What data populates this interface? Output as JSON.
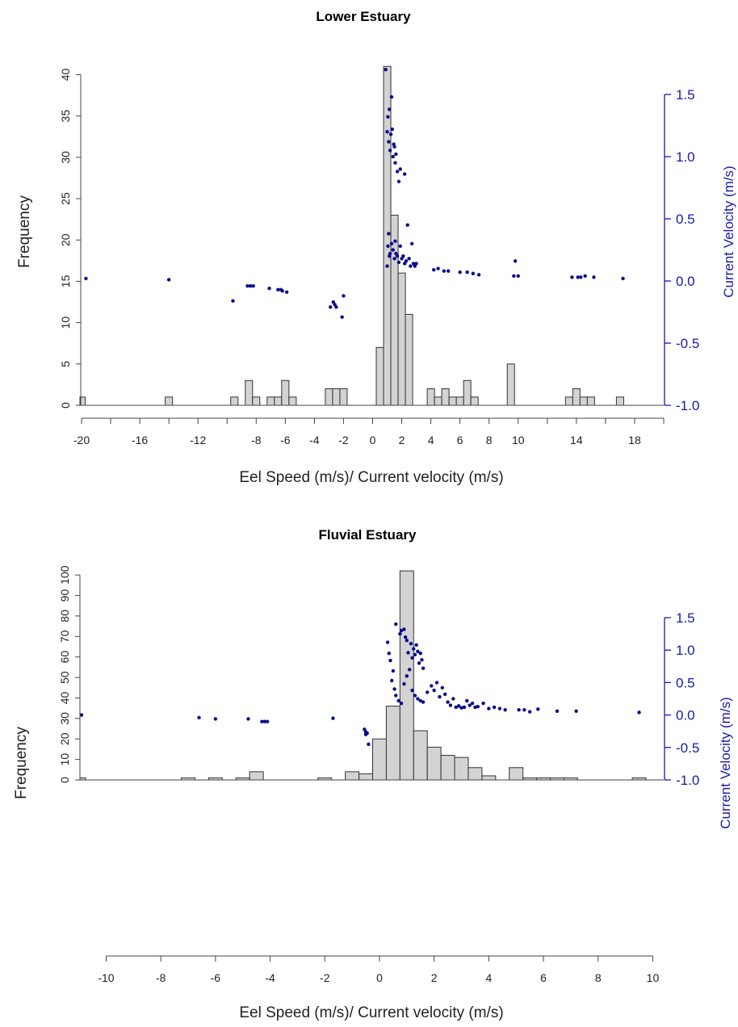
{
  "chart_data": [
    {
      "type": "bar",
      "title": "Lower Estuary",
      "xlabel": "Eel Speed (m/s)/ Current velocity (m/s)",
      "ylabel": "Frequency",
      "y2label": "Current Velocity (m/s)",
      "xlim": [
        -20,
        20
      ],
      "ylim": [
        0,
        42
      ],
      "y2lim": [
        -1.0,
        1.5
      ],
      "xticks": [
        -20,
        -16,
        -12,
        -8,
        -6,
        -4,
        -2,
        0,
        2,
        4,
        6,
        8,
        10,
        14,
        18
      ],
      "yticks": [
        0,
        5,
        10,
        15,
        20,
        25,
        30,
        35,
        40
      ],
      "y2ticks": [
        -1.0,
        -0.5,
        0.0,
        0.5,
        1.0,
        1.5
      ],
      "bar_width": 0.5,
      "bars": [
        {
          "x": -20,
          "count": 1
        },
        {
          "x": -14,
          "count": 1
        },
        {
          "x": -9.5,
          "count": 1
        },
        {
          "x": -8.5,
          "count": 3
        },
        {
          "x": -8,
          "count": 1
        },
        {
          "x": -7,
          "count": 1
        },
        {
          "x": -6.5,
          "count": 1
        },
        {
          "x": -6,
          "count": 3
        },
        {
          "x": -5.5,
          "count": 1
        },
        {
          "x": -3,
          "count": 2
        },
        {
          "x": -2.5,
          "count": 2
        },
        {
          "x": -2,
          "count": 2
        },
        {
          "x": 0.5,
          "count": 7
        },
        {
          "x": 1,
          "count": 41
        },
        {
          "x": 1.5,
          "count": 23
        },
        {
          "x": 2,
          "count": 16
        },
        {
          "x": 2.5,
          "count": 11
        },
        {
          "x": 4,
          "count": 2
        },
        {
          "x": 4.5,
          "count": 1
        },
        {
          "x": 5,
          "count": 2
        },
        {
          "x": 5.5,
          "count": 1
        },
        {
          "x": 6,
          "count": 1
        },
        {
          "x": 6.5,
          "count": 3
        },
        {
          "x": 7,
          "count": 1
        },
        {
          "x": 9.5,
          "count": 5
        },
        {
          "x": 13.5,
          "count": 1
        },
        {
          "x": 14,
          "count": 2
        },
        {
          "x": 14.5,
          "count": 1
        },
        {
          "x": 15,
          "count": 1
        },
        {
          "x": 17,
          "count": 1
        }
      ],
      "points": [
        [
          -19.7,
          0.02
        ],
        [
          -14,
          0.01
        ],
        [
          -9.6,
          -0.16
        ],
        [
          -8.6,
          -0.04
        ],
        [
          -8.4,
          -0.04
        ],
        [
          -8.2,
          -0.04
        ],
        [
          -7.1,
          -0.06
        ],
        [
          -6.5,
          -0.07
        ],
        [
          -6.3,
          -0.07
        ],
        [
          -6.2,
          -0.08
        ],
        [
          -5.9,
          -0.09
        ],
        [
          -2.9,
          -0.21
        ],
        [
          -2.7,
          -0.17
        ],
        [
          -2.6,
          -0.19
        ],
        [
          -2.5,
          -0.21
        ],
        [
          -2.1,
          -0.29
        ],
        [
          -2.0,
          -0.12
        ],
        [
          0.9,
          1.7
        ],
        [
          1.0,
          1.2
        ],
        [
          1.05,
          1.32
        ],
        [
          1.1,
          1.12
        ],
        [
          1.15,
          1.38
        ],
        [
          1.2,
          1.05
        ],
        [
          1.25,
          1.18
        ],
        [
          1.3,
          1.48
        ],
        [
          1.35,
          1.22
        ],
        [
          1.4,
          1.0
        ],
        [
          1.45,
          1.1
        ],
        [
          1.5,
          1.08
        ],
        [
          1.55,
          0.95
        ],
        [
          1.6,
          1.02
        ],
        [
          1.7,
          0.88
        ],
        [
          1.8,
          0.8
        ],
        [
          1.9,
          0.9
        ],
        [
          2.2,
          0.86
        ],
        [
          1.0,
          0.12
        ],
        [
          1.05,
          0.28
        ],
        [
          1.1,
          0.38
        ],
        [
          1.15,
          0.2
        ],
        [
          1.2,
          0.22
        ],
        [
          1.3,
          0.3
        ],
        [
          1.4,
          0.25
        ],
        [
          1.5,
          0.18
        ],
        [
          1.55,
          0.32
        ],
        [
          1.6,
          0.22
        ],
        [
          1.7,
          0.2
        ],
        [
          1.8,
          0.15
        ],
        [
          1.9,
          0.28
        ],
        [
          2.0,
          0.18
        ],
        [
          2.1,
          0.2
        ],
        [
          2.2,
          0.14
        ],
        [
          2.3,
          0.16
        ],
        [
          2.4,
          0.45
        ],
        [
          2.5,
          0.18
        ],
        [
          2.6,
          0.12
        ],
        [
          2.7,
          0.3
        ],
        [
          2.8,
          0.14
        ],
        [
          2.9,
          0.12
        ],
        [
          3.0,
          0.14
        ],
        [
          4.2,
          0.09
        ],
        [
          4.5,
          0.1
        ],
        [
          4.9,
          0.08
        ],
        [
          5.2,
          0.08
        ],
        [
          6.0,
          0.07
        ],
        [
          6.5,
          0.07
        ],
        [
          6.9,
          0.06
        ],
        [
          7.3,
          0.05
        ],
        [
          9.7,
          0.04
        ],
        [
          9.8,
          0.16
        ],
        [
          10.0,
          0.04
        ],
        [
          13.7,
          0.03
        ],
        [
          14.1,
          0.03
        ],
        [
          14.3,
          0.03
        ],
        [
          14.6,
          0.04
        ],
        [
          15.2,
          0.03
        ],
        [
          17.2,
          0.02
        ]
      ]
    },
    {
      "type": "bar",
      "title": "Fluvial Estuary",
      "xlabel": "Eel Speed (m/s)/ Current velocity (m/s)",
      "ylabel": "Frequency",
      "y2label": "Current Velocity (m/s)",
      "xlim": [
        -10.9,
        10.4
      ],
      "ylim": [
        0,
        104
      ],
      "y2lim": [
        -1.0,
        1.5
      ],
      "xticks": [
        -10,
        -8,
        -6,
        -4,
        -2,
        0,
        2,
        4,
        6,
        8,
        10
      ],
      "yticks": [
        0,
        10,
        20,
        30,
        40,
        50,
        60,
        70,
        80,
        90,
        100
      ],
      "y2ticks": [
        -1.0,
        -0.5,
        0.0,
        0.5,
        1.0,
        1.5
      ],
      "bar_width": 0.5,
      "bars": [
        {
          "x": -11,
          "count": 1
        },
        {
          "x": -7,
          "count": 1
        },
        {
          "x": -6,
          "count": 1
        },
        {
          "x": -5,
          "count": 1
        },
        {
          "x": -4.5,
          "count": 4
        },
        {
          "x": -2,
          "count": 1
        },
        {
          "x": -1,
          "count": 4
        },
        {
          "x": -0.5,
          "count": 3
        },
        {
          "x": 0,
          "count": 20
        },
        {
          "x": 0.5,
          "count": 36
        },
        {
          "x": 1,
          "count": 102
        },
        {
          "x": 1.5,
          "count": 24
        },
        {
          "x": 2,
          "count": 16
        },
        {
          "x": 2.5,
          "count": 12
        },
        {
          "x": 3,
          "count": 11
        },
        {
          "x": 3.5,
          "count": 6
        },
        {
          "x": 4,
          "count": 2
        },
        {
          "x": 5,
          "count": 6
        },
        {
          "x": 5.5,
          "count": 1
        },
        {
          "x": 6,
          "count": 1
        },
        {
          "x": 6.5,
          "count": 1
        },
        {
          "x": 7,
          "count": 1
        },
        {
          "x": 9.5,
          "count": 1
        }
      ],
      "points": [
        [
          -10.9,
          0.0
        ],
        [
          -6.6,
          -0.04
        ],
        [
          -6.0,
          -0.06
        ],
        [
          -4.8,
          -0.06
        ],
        [
          -4.3,
          -0.1
        ],
        [
          -4.2,
          -0.1
        ],
        [
          -4.1,
          -0.1
        ],
        [
          -1.7,
          -0.05
        ],
        [
          -0.55,
          -0.22
        ],
        [
          -0.5,
          -0.26
        ],
        [
          -0.5,
          -0.3
        ],
        [
          -0.45,
          -0.28
        ],
        [
          -0.4,
          -0.45
        ],
        [
          0.6,
          1.4
        ],
        [
          0.75,
          1.25
        ],
        [
          0.8,
          1.3
        ],
        [
          0.9,
          1.32
        ],
        [
          0.95,
          1.2
        ],
        [
          0.3,
          1.12
        ],
        [
          0.35,
          0.95
        ],
        [
          0.4,
          0.84
        ],
        [
          0.5,
          0.68
        ],
        [
          0.45,
          0.53
        ],
        [
          0.55,
          0.4
        ],
        [
          0.6,
          0.3
        ],
        [
          0.7,
          0.22
        ],
        [
          0.8,
          0.18
        ],
        [
          0.9,
          0.48
        ],
        [
          1.0,
          0.6
        ],
        [
          1.0,
          1.15
        ],
        [
          1.05,
          0.96
        ],
        [
          1.1,
          0.7
        ],
        [
          1.15,
          1.1
        ],
        [
          1.2,
          0.88
        ],
        [
          1.25,
          1.02
        ],
        [
          1.3,
          0.93
        ],
        [
          1.35,
          1.08
        ],
        [
          1.4,
          0.98
        ],
        [
          1.45,
          0.8
        ],
        [
          1.5,
          0.95
        ],
        [
          1.55,
          0.85
        ],
        [
          1.6,
          0.72
        ],
        [
          1.2,
          0.38
        ],
        [
          1.3,
          0.3
        ],
        [
          1.4,
          0.25
        ],
        [
          1.5,
          0.22
        ],
        [
          1.6,
          0.2
        ],
        [
          1.75,
          0.35
        ],
        [
          1.9,
          0.45
        ],
        [
          2.0,
          0.38
        ],
        [
          2.1,
          0.5
        ],
        [
          2.2,
          0.28
        ],
        [
          2.3,
          0.42
        ],
        [
          2.4,
          0.32
        ],
        [
          2.5,
          0.2
        ],
        [
          2.6,
          0.15
        ],
        [
          2.7,
          0.25
        ],
        [
          2.8,
          0.12
        ],
        [
          2.9,
          0.14
        ],
        [
          3.0,
          0.11
        ],
        [
          3.1,
          0.12
        ],
        [
          3.2,
          0.22
        ],
        [
          3.3,
          0.15
        ],
        [
          3.4,
          0.18
        ],
        [
          3.5,
          0.12
        ],
        [
          3.6,
          0.13
        ],
        [
          3.8,
          0.18
        ],
        [
          4.0,
          0.1
        ],
        [
          4.2,
          0.12
        ],
        [
          4.4,
          0.1
        ],
        [
          4.6,
          0.08
        ],
        [
          5.1,
          0.08
        ],
        [
          5.3,
          0.08
        ],
        [
          5.5,
          0.05
        ],
        [
          5.8,
          0.09
        ],
        [
          6.5,
          0.06
        ],
        [
          7.2,
          0.06
        ],
        [
          9.5,
          0.04
        ]
      ]
    }
  ]
}
